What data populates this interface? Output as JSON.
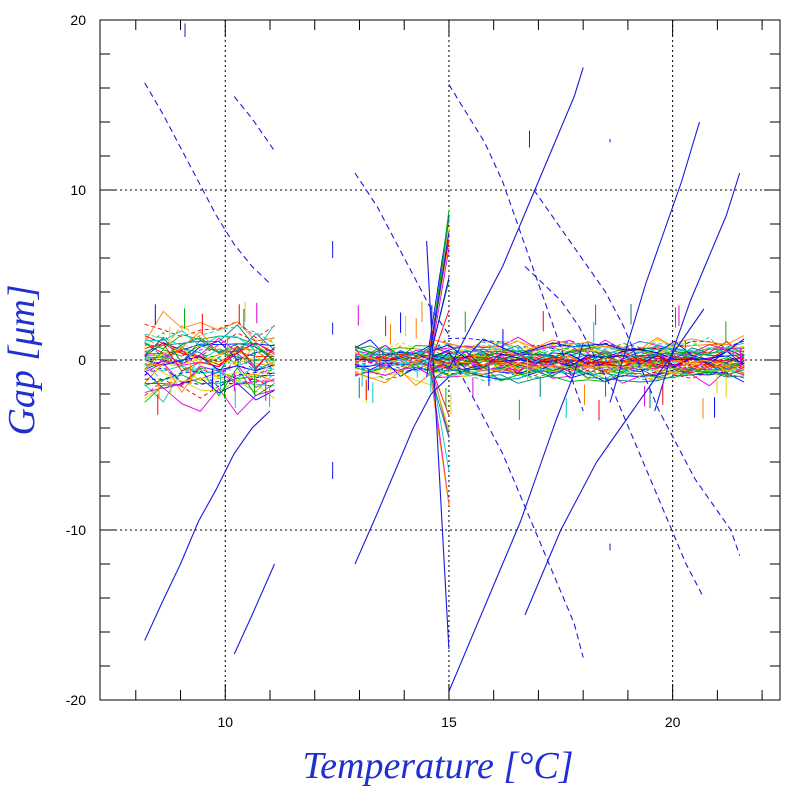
{
  "chart_data": {
    "type": "line",
    "title": "",
    "xlabel": "Temperature [°C]",
    "ylabel": "Gap [μm]",
    "xlim": [
      7.2,
      22.4
    ],
    "ylim": [
      -20,
      20
    ],
    "xticks": [
      10,
      15,
      20
    ],
    "xtick_labels": [
      "10",
      "15",
      "20"
    ],
    "yticks": [
      -20,
      -10,
      0,
      10,
      20
    ],
    "ytick_labels": [
      "-20",
      "-10",
      "0",
      "10",
      "20"
    ],
    "grid": "dotted at major ticks",
    "legend": "none",
    "colors": {
      "axis_title": "#1f2fd0",
      "trend_lines": "#1a1adf",
      "bundle_palette": [
        "#ff0000",
        "#00b000",
        "#0000ff",
        "#00c8c8",
        "#e000e0",
        "#e0d000",
        "#ff8000",
        "#008080"
      ]
    },
    "series": [
      {
        "style": "solid",
        "x": [
          8.2,
          8.6,
          9.0,
          9.4,
          9.8,
          10.2,
          10.6,
          11.0
        ],
        "y": [
          -16.5,
          -14.2,
          -12.0,
          -9.5,
          -7.6,
          -5.5,
          -4.0,
          -3.0
        ]
      },
      {
        "style": "solid",
        "x": [
          10.2,
          10.6,
          11.1
        ],
        "y": [
          -17.3,
          -15.0,
          -12.0
        ]
      },
      {
        "style": "dashed",
        "x": [
          8.2,
          8.6,
          9.0,
          9.4,
          9.8,
          10.2,
          10.6,
          11.0
        ],
        "y": [
          16.3,
          14.5,
          12.5,
          10.5,
          8.5,
          6.8,
          5.5,
          4.5
        ]
      },
      {
        "style": "dashed",
        "x": [
          10.2,
          10.6,
          11.1
        ],
        "y": [
          15.5,
          14.2,
          12.3
        ]
      },
      {
        "style": "solid",
        "x": [
          12.9,
          13.4,
          13.8,
          14.2,
          14.6,
          15.0
        ],
        "y": [
          -12.0,
          -9.0,
          -6.5,
          -4.0,
          -2.0,
          -1.0
        ]
      },
      {
        "style": "dashed",
        "x": [
          12.9,
          13.4,
          13.8,
          14.2,
          14.6,
          15.0
        ],
        "y": [
          11.0,
          9.0,
          7.0,
          5.0,
          3.0,
          1.5
        ]
      },
      {
        "style": "solid",
        "x": [
          14.5,
          15.0
        ],
        "y": [
          7.0,
          -17.0
        ]
      },
      {
        "style": "solid",
        "x": [
          14.5,
          15.0
        ],
        "y": [
          -1.0,
          7.5
        ]
      },
      {
        "style": "solid",
        "x": [
          15.0,
          15.4,
          15.8,
          16.2,
          16.6,
          17.0,
          17.4,
          17.8,
          18.0
        ],
        "y": [
          -19.5,
          -17.0,
          -14.5,
          -12.0,
          -9.5,
          -6.5,
          -3.5,
          -0.8,
          1.0
        ]
      },
      {
        "style": "solid",
        "x": [
          15.0,
          15.4,
          15.8,
          16.2,
          16.6,
          17.0,
          17.4,
          17.8,
          18.0
        ],
        "y": [
          -0.5,
          1.5,
          3.5,
          5.5,
          8.0,
          10.5,
          13.0,
          15.5,
          17.2
        ]
      },
      {
        "style": "dashed",
        "x": [
          15.0,
          15.4,
          15.8,
          16.2,
          16.6,
          17.0,
          17.4,
          17.8,
          18.0
        ],
        "y": [
          16.2,
          14.5,
          12.8,
          10.5,
          7.5,
          4.5,
          1.5,
          -1.5,
          -3.0
        ]
      },
      {
        "style": "dashed",
        "x": [
          15.0,
          15.4,
          15.8,
          16.2,
          16.6,
          17.0,
          17.4,
          17.8,
          18.0
        ],
        "y": [
          0.5,
          -1.5,
          -3.5,
          -5.5,
          -8.0,
          -10.5,
          -13.0,
          -15.5,
          -17.5
        ]
      },
      {
        "style": "solid",
        "x": [
          16.7,
          17.1,
          17.5,
          17.9,
          18.3,
          18.7,
          19.1,
          19.5,
          19.9,
          20.3,
          20.7
        ],
        "y": [
          -15.0,
          -12.5,
          -10.0,
          -8.0,
          -6.0,
          -4.5,
          -3.0,
          -1.5,
          0.0,
          1.5,
          3.0
        ]
      },
      {
        "style": "solid",
        "x": [
          18.6,
          19.0,
          19.4,
          19.8,
          20.2,
          20.6
        ],
        "y": [
          -2.5,
          1.0,
          4.5,
          7.5,
          10.5,
          14.0
        ]
      },
      {
        "style": "solid",
        "x": [
          19.6,
          20.0,
          20.4,
          20.8,
          21.2,
          21.5
        ],
        "y": [
          -3.0,
          0.5,
          3.5,
          6.0,
          8.5,
          11.0
        ]
      },
      {
        "style": "dashed",
        "x": [
          16.7,
          17.1,
          17.5,
          17.9,
          18.3,
          18.7,
          19.1,
          19.5,
          19.9,
          20.3,
          20.7
        ],
        "y": [
          5.5,
          4.5,
          3.5,
          2.0,
          0.0,
          -2.0,
          -4.5,
          -7.0,
          -9.5,
          -12.0,
          -14.0
        ]
      },
      {
        "style": "dashed",
        "x": [
          16.9,
          17.3,
          17.7,
          18.1,
          18.5,
          18.9,
          19.3,
          19.7,
          20.1,
          20.5,
          20.9,
          21.3,
          21.5
        ],
        "y": [
          10.0,
          8.5,
          7.0,
          5.5,
          4.0,
          2.0,
          -0.5,
          -3.0,
          -5.0,
          -7.0,
          -8.5,
          -10.0,
          -11.5
        ]
      }
    ],
    "annotations": "dense bundle of many multi-colored measurement traces near 0 μm over 8–11 °C and 13–21.5 °C; short vertical marks indicate individual scatter"
  }
}
